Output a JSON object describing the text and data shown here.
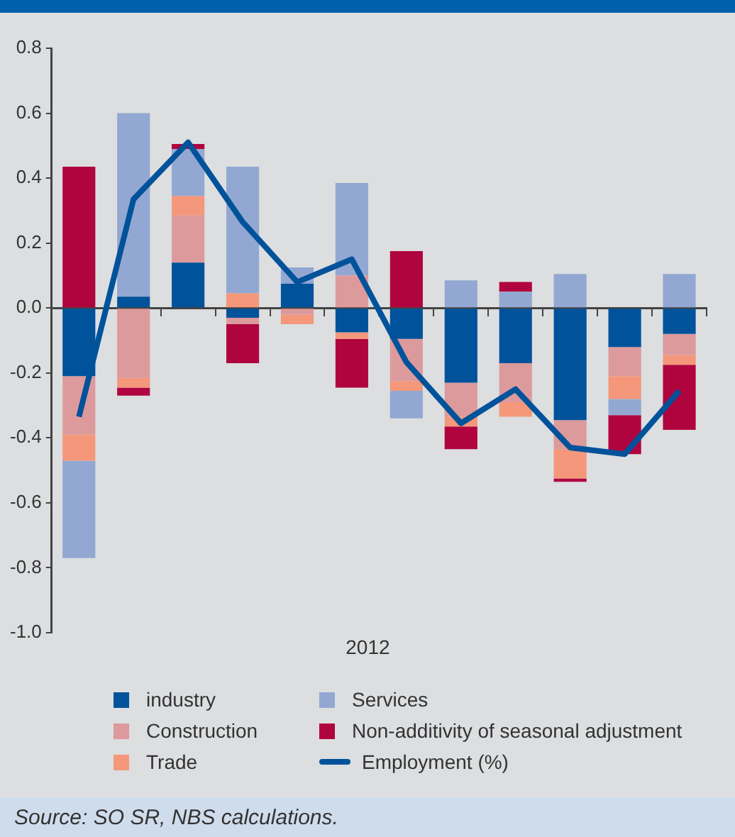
{
  "chart_data": {
    "type": "bar",
    "stacked": true,
    "xlabel": "2012",
    "categories": [
      null,
      null,
      null,
      null,
      null,
      null,
      null,
      null,
      null,
      null,
      null,
      null
    ],
    "series": [
      {
        "name": "industry",
        "color": "#00529b",
        "values": [
          -0.21,
          0.035,
          0.14,
          -0.03,
          0.075,
          -0.075,
          -0.095,
          -0.23,
          -0.17,
          -0.345,
          -0.12,
          -0.08
        ]
      },
      {
        "name": "Construction",
        "color": "#dd9a9c",
        "values": [
          -0.18,
          -0.215,
          0.145,
          -0.02,
          -0.02,
          0.1,
          -0.13,
          -0.105,
          -0.12,
          -0.09,
          -0.09,
          -0.065
        ]
      },
      {
        "name": "Trade",
        "color": "#f4977a",
        "values": [
          -0.08,
          -0.03,
          0.06,
          0.045,
          -0.03,
          -0.02,
          -0.03,
          -0.03,
          -0.045,
          -0.09,
          -0.07,
          -0.03
        ]
      },
      {
        "name": "Services",
        "color": "#92a8d2",
        "values": [
          -0.3,
          0.565,
          0.145,
          0.39,
          0.05,
          0.285,
          -0.085,
          0.085,
          0.05,
          0.105,
          -0.05,
          0.105
        ]
      },
      {
        "name": "Non-additivity of seasonal adjustment",
        "color": "#b0043f",
        "values": [
          0.435,
          -0.025,
          0.015,
          -0.12,
          0,
          -0.15,
          0.175,
          -0.07,
          0.03,
          -0.01,
          -0.12,
          -0.2
        ]
      },
      {
        "name": "Employment (%)",
        "type": "line",
        "color": "#00529b",
        "values": [
          -0.335,
          0.335,
          0.51,
          0.265,
          0.08,
          0.15,
          -0.167,
          -0.355,
          -0.25,
          -0.43,
          -0.45,
          -0.255
        ]
      }
    ],
    "ylim": [
      -1.0,
      0.8
    ],
    "yticks": [
      {
        "value": -1,
        "label": "-1.0"
      },
      -0.8,
      -0.6,
      -0.4,
      -0.2,
      {
        "value": 0,
        "label": "0.0"
      },
      0.2,
      0.4,
      0.6,
      0.8
    ],
    "marker": "none",
    "legend": "bottom",
    "annotations": [
      "Source: SO SR, NBS calculations."
    ]
  }
}
